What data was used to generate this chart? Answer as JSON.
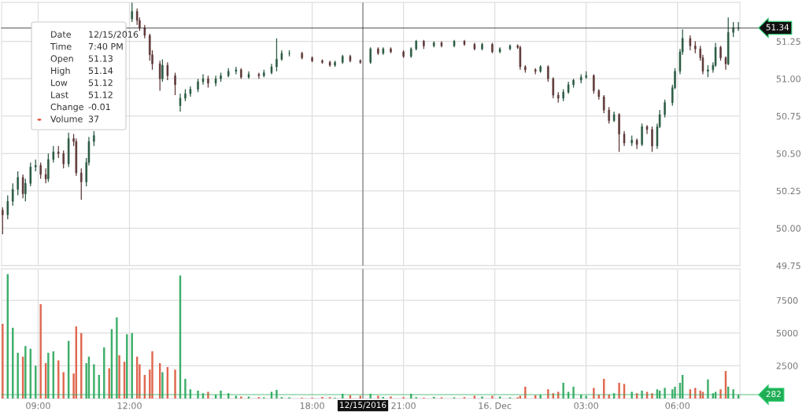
{
  "chart_data": [
    {
      "type": "candlestick",
      "x": [
        "2016-12-15T07:50",
        "2016-12-15T08:00",
        "2016-12-15T08:10",
        "2016-12-15T08:20",
        "2016-12-15T08:30",
        "2016-12-15T08:35",
        "2016-12-15T08:45",
        "2016-12-15T08:55",
        "2016-12-15T09:05",
        "2016-12-15T09:15",
        "2016-12-15T09:20",
        "2016-12-15T09:30",
        "2016-12-15T09:40",
        "2016-12-15T09:50",
        "2016-12-15T10:00",
        "2016-12-15T10:10",
        "2016-12-15T10:15",
        "2016-12-15T10:25",
        "2016-12-15T10:35",
        "2016-12-15T10:40",
        "2016-12-15T10:50",
        "2016-12-15T12:05",
        "2016-12-15T12:15",
        "2016-12-15T12:20",
        "2016-12-15T12:30",
        "2016-12-15T12:40",
        "2016-12-15T12:45",
        "2016-12-15T13:00",
        "2016-12-15T13:05",
        "2016-12-15T13:15",
        "2016-12-15T13:30",
        "2016-12-15T13:40",
        "2016-12-15T13:50",
        "2016-12-15T14:00",
        "2016-12-15T14:15",
        "2016-12-15T14:25",
        "2016-12-15T14:35",
        "2016-12-15T14:50",
        "2016-12-15T15:00",
        "2016-12-15T15:15",
        "2016-12-15T15:30",
        "2016-12-15T15:40",
        "2016-12-15T15:55",
        "2016-12-15T16:15",
        "2016-12-15T16:25",
        "2016-12-15T16:40",
        "2016-12-15T16:50",
        "2016-12-15T17:00",
        "2016-12-15T17:15",
        "2016-12-15T17:40",
        "2016-12-15T18:00",
        "2016-12-15T18:20",
        "2016-12-15T18:35",
        "2016-12-15T18:45",
        "2016-12-15T19:00",
        "2016-12-15T19:15",
        "2016-12-15T19:35",
        "2016-12-15T19:55",
        "2016-12-15T20:10",
        "2016-12-15T20:20",
        "2016-12-15T20:35",
        "2016-12-15T21:00",
        "2016-12-15T21:15",
        "2016-12-15T21:25",
        "2016-12-15T21:40",
        "2016-12-15T22:00",
        "2016-12-15T22:15",
        "2016-12-15T22:40",
        "2016-12-15T23:00",
        "2016-12-15T23:20",
        "2016-12-15T23:35",
        "2016-12-15T23:55",
        "2016-12-16T00:10",
        "2016-12-16T00:30",
        "2016-12-16T00:45",
        "2016-12-16T00:50",
        "2016-12-16T01:00",
        "2016-12-16T01:20",
        "2016-12-16T01:30",
        "2016-12-16T01:45",
        "2016-12-16T01:55",
        "2016-12-16T02:05",
        "2016-12-16T02:15",
        "2016-12-16T02:25",
        "2016-12-16T02:35",
        "2016-12-16T02:50",
        "2016-12-16T03:00",
        "2016-12-16T03:15",
        "2016-12-16T03:25",
        "2016-12-16T03:35",
        "2016-12-16T03:45",
        "2016-12-16T03:55",
        "2016-12-16T04:05",
        "2016-12-16T04:15",
        "2016-12-16T04:30",
        "2016-12-16T04:40",
        "2016-12-16T04:50",
        "2016-12-16T05:00",
        "2016-12-16T05:10",
        "2016-12-16T05:20",
        "2016-12-16T05:25",
        "2016-12-16T05:35",
        "2016-12-16T05:50",
        "2016-12-16T05:55",
        "2016-12-16T06:05",
        "2016-12-16T06:10",
        "2016-12-16T06:25",
        "2016-12-16T06:35",
        "2016-12-16T06:45",
        "2016-12-16T06:50",
        "2016-12-16T07:00",
        "2016-12-16T07:10",
        "2016-12-16T07:15",
        "2016-12-16T07:25",
        "2016-12-16T07:35",
        "2016-12-16T07:40",
        "2016-12-16T07:50",
        "2016-12-16T08:00"
      ],
      "ohlc": [
        [
          50.12,
          50.14,
          49.96,
          50.09
        ],
        [
          50.09,
          50.22,
          50.06,
          50.18
        ],
        [
          50.18,
          50.3,
          50.15,
          50.26
        ],
        [
          50.26,
          50.38,
          50.22,
          50.34
        ],
        [
          50.34,
          50.36,
          50.2,
          50.23
        ],
        [
          50.23,
          50.33,
          50.18,
          50.3
        ],
        [
          50.3,
          50.44,
          50.28,
          50.41
        ],
        [
          50.41,
          50.46,
          50.38,
          50.42
        ],
        [
          50.42,
          50.44,
          50.33,
          50.36
        ],
        [
          50.36,
          50.4,
          50.3,
          50.33
        ],
        [
          50.33,
          50.5,
          50.31,
          50.46
        ],
        [
          50.46,
          50.55,
          50.44,
          50.51
        ],
        [
          50.51,
          50.55,
          50.47,
          50.5
        ],
        [
          50.5,
          50.52,
          50.4,
          50.43
        ],
        [
          50.43,
          50.64,
          50.41,
          50.6
        ],
        [
          50.6,
          50.63,
          50.55,
          50.58
        ],
        [
          50.58,
          50.6,
          50.35,
          50.37
        ],
        [
          50.37,
          50.4,
          50.19,
          50.31
        ],
        [
          50.31,
          50.47,
          50.28,
          50.44
        ],
        [
          50.44,
          50.61,
          50.42,
          50.58
        ],
        [
          50.58,
          50.65,
          50.55,
          50.62
        ],
        [
          51.4,
          51.51,
          51.38,
          51.45
        ],
        [
          51.45,
          51.47,
          51.36,
          51.39
        ],
        [
          51.39,
          51.41,
          51.32,
          51.34
        ],
        [
          51.34,
          51.36,
          51.27,
          51.29
        ],
        [
          51.29,
          51.3,
          51.12,
          51.16
        ],
        [
          51.16,
          51.19,
          51.06,
          51.1
        ],
        [
          51.1,
          51.12,
          50.92,
          51.0
        ],
        [
          51.0,
          51.13,
          50.98,
          51.09
        ],
        [
          51.09,
          51.11,
          50.99,
          51.02
        ],
        [
          51.02,
          51.04,
          50.89,
          50.96
        ],
        [
          50.82,
          50.9,
          50.78,
          50.87
        ],
        [
          50.87,
          50.93,
          50.85,
          50.9
        ],
        [
          50.9,
          50.95,
          50.88,
          50.93
        ],
        [
          50.93,
          51.0,
          50.91,
          50.98
        ],
        [
          50.98,
          51.03,
          50.96,
          51.0
        ],
        [
          51.0,
          51.02,
          50.94,
          50.97
        ],
        [
          50.97,
          51.02,
          50.95,
          51.0
        ],
        [
          51.0,
          51.04,
          50.98,
          51.02
        ],
        [
          51.02,
          51.07,
          51.01,
          51.05
        ],
        [
          51.05,
          51.08,
          51.03,
          51.06
        ],
        [
          51.06,
          51.07,
          51.0,
          51.01
        ],
        [
          51.01,
          51.05,
          51.0,
          51.03
        ],
        [
          51.03,
          51.04,
          51.0,
          51.02
        ],
        [
          51.02,
          51.06,
          51.01,
          51.04
        ],
        [
          51.04,
          51.1,
          51.03,
          51.08
        ],
        [
          51.08,
          51.27,
          51.05,
          51.13
        ],
        [
          51.13,
          51.19,
          51.12,
          51.17
        ],
        [
          51.17,
          51.19,
          51.15,
          51.17
        ],
        [
          51.17,
          51.18,
          51.13,
          51.14
        ],
        [
          51.14,
          51.15,
          51.11,
          51.12
        ],
        [
          51.12,
          51.13,
          51.1,
          51.11
        ],
        [
          51.11,
          51.12,
          51.08,
          51.09
        ],
        [
          51.09,
          51.12,
          51.08,
          51.11
        ],
        [
          51.11,
          51.16,
          51.1,
          51.15
        ],
        [
          51.15,
          51.16,
          51.11,
          51.12
        ],
        [
          51.12,
          51.13,
          51.1,
          51.11
        ],
        [
          51.11,
          51.21,
          51.1,
          51.2
        ],
        [
          51.2,
          51.21,
          51.16,
          51.17
        ],
        [
          51.17,
          51.21,
          51.16,
          51.2
        ],
        [
          51.2,
          51.21,
          51.17,
          51.18
        ],
        [
          51.18,
          51.19,
          51.14,
          51.15
        ],
        [
          51.15,
          51.21,
          51.14,
          51.2
        ],
        [
          51.2,
          51.26,
          51.19,
          51.25
        ],
        [
          51.25,
          51.26,
          51.2,
          51.22
        ],
        [
          51.22,
          51.25,
          51.21,
          51.24
        ],
        [
          51.24,
          51.25,
          51.21,
          51.22
        ],
        [
          51.22,
          51.26,
          51.21,
          51.25
        ],
        [
          51.25,
          51.26,
          51.22,
          51.23
        ],
        [
          51.23,
          51.24,
          51.19,
          51.2
        ],
        [
          51.2,
          51.24,
          51.19,
          51.23
        ],
        [
          51.23,
          51.24,
          51.17,
          51.18
        ],
        [
          51.18,
          51.21,
          51.17,
          51.2
        ],
        [
          51.2,
          51.23,
          51.19,
          51.22
        ],
        [
          51.22,
          51.23,
          51.2,
          51.21
        ],
        [
          51.21,
          51.22,
          51.06,
          51.08
        ],
        [
          51.08,
          51.09,
          51.04,
          51.06
        ],
        [
          51.06,
          51.07,
          51.03,
          51.05
        ],
        [
          51.05,
          51.09,
          51.04,
          51.08
        ],
        [
          51.08,
          51.09,
          50.98,
          51.0
        ],
        [
          51.0,
          51.01,
          50.87,
          50.89
        ],
        [
          50.89,
          50.91,
          50.84,
          50.87
        ],
        [
          50.87,
          50.93,
          50.85,
          50.91
        ],
        [
          50.91,
          50.98,
          50.9,
          50.96
        ],
        [
          50.96,
          51.0,
          50.94,
          50.99
        ],
        [
          50.99,
          51.03,
          50.97,
          51.01
        ],
        [
          51.01,
          51.05,
          51.0,
          51.02
        ],
        [
          51.02,
          51.03,
          50.9,
          50.92
        ],
        [
          50.92,
          50.93,
          50.86,
          50.88
        ],
        [
          50.88,
          50.89,
          50.77,
          50.79
        ],
        [
          50.79,
          50.81,
          50.7,
          50.72
        ],
        [
          50.72,
          50.78,
          50.71,
          50.76
        ],
        [
          50.76,
          50.77,
          50.51,
          50.63
        ],
        [
          50.63,
          50.65,
          50.55,
          50.57
        ],
        [
          50.57,
          50.62,
          50.55,
          50.59
        ],
        [
          50.59,
          50.6,
          50.53,
          50.56
        ],
        [
          50.56,
          50.7,
          50.55,
          50.68
        ],
        [
          50.68,
          50.69,
          50.63,
          50.66
        ],
        [
          50.66,
          50.68,
          50.51,
          50.55
        ],
        [
          50.55,
          50.7,
          50.53,
          50.68
        ],
        [
          50.68,
          50.79,
          50.67,
          50.76
        ],
        [
          50.76,
          50.86,
          50.74,
          50.84
        ],
        [
          50.84,
          50.96,
          50.82,
          50.94
        ],
        [
          50.94,
          51.07,
          50.93,
          51.05
        ],
        [
          51.05,
          51.2,
          51.03,
          51.18
        ],
        [
          51.18,
          51.33,
          51.16,
          51.27
        ],
        [
          51.27,
          51.29,
          51.19,
          51.22
        ],
        [
          51.22,
          51.25,
          51.17,
          51.2
        ],
        [
          51.2,
          51.22,
          51.12,
          51.14
        ],
        [
          51.14,
          51.16,
          51.03,
          51.05
        ],
        [
          51.05,
          51.09,
          51.01,
          51.06
        ],
        [
          51.06,
          51.11,
          51.04,
          51.09
        ],
        [
          51.09,
          51.24,
          51.08,
          51.21
        ],
        [
          51.21,
          51.22,
          51.12,
          51.14
        ],
        [
          51.14,
          51.15,
          51.06,
          51.1
        ],
        [
          51.1,
          51.41,
          51.09,
          51.31
        ],
        [
          51.31,
          51.38,
          51.28,
          51.34
        ],
        [
          51.34,
          51.38,
          51.32,
          51.34
        ]
      ],
      "colors": [
        "#5e3838",
        "#2a5a42",
        "#2a5a42",
        "#2a5a42",
        "#5e3838",
        "#2a5a42",
        "#2a5a42",
        "#2a5a42",
        "#5e3838",
        "#5e3838",
        "#2a5a42",
        "#2a5a42",
        "#5e3838",
        "#5e3838",
        "#2a5a42",
        "#5e3838",
        "#5e3838",
        "#5e3838",
        "#2a5a42",
        "#2a5a42",
        "#2a5a42",
        "#2a5a42",
        "#5e3838",
        "#5e3838",
        "#5e3838",
        "#5e3838",
        "#5e3838",
        "#5e3838",
        "#2a5a42",
        "#5e3838",
        "#5e3838",
        "#2a5a42",
        "#2a5a42",
        "#2a5a42",
        "#2a5a42",
        "#2a5a42",
        "#5e3838",
        "#2a5a42",
        "#2a5a42",
        "#2a5a42",
        "#2a5a42",
        "#5e3838",
        "#2a5a42",
        "#5e3838",
        "#2a5a42",
        "#2a5a42",
        "#2a5a42",
        "#2a5a42",
        "#2a5a42",
        "#5e3838",
        "#5e3838",
        "#5e3838",
        "#5e3838",
        "#2a5a42",
        "#2a5a42",
        "#5e3838",
        "#5e3838",
        "#2a5a42",
        "#5e3838",
        "#2a5a42",
        "#5e3838",
        "#5e3838",
        "#2a5a42",
        "#2a5a42",
        "#5e3838",
        "#2a5a42",
        "#5e3838",
        "#2a5a42",
        "#5e3838",
        "#5e3838",
        "#2a5a42",
        "#5e3838",
        "#2a5a42",
        "#2a5a42",
        "#5e3838",
        "#5e3838",
        "#5e3838",
        "#5e3838",
        "#2a5a42",
        "#5e3838",
        "#5e3838",
        "#5e3838",
        "#2a5a42",
        "#2a5a42",
        "#2a5a42",
        "#2a5a42",
        "#2a5a42",
        "#5e3838",
        "#5e3838",
        "#5e3838",
        "#5e3838",
        "#2a5a42",
        "#5e3838",
        "#5e3838",
        "#2a5a42",
        "#5e3838",
        "#2a5a42",
        "#5e3838",
        "#5e3838",
        "#2a5a42",
        "#2a5a42",
        "#2a5a42",
        "#2a5a42",
        "#2a5a42",
        "#2a5a42",
        "#2a5a42",
        "#5e3838",
        "#5e3838",
        "#5e3838",
        "#5e3838",
        "#2a5a42",
        "#2a5a42",
        "#2a5a42",
        "#5e3838",
        "#5e3838",
        "#2a5a42",
        "#2a5a42",
        "#2a5a42"
      ],
      "xlim": [
        "2016-12-15T07:48",
        "2016-12-16T08:03"
      ],
      "xticks": [
        {
          "value": "2016-12-15T09:00",
          "label": null
        },
        {
          "value": "2016-12-15T12:00",
          "label": null
        },
        {
          "value": "2016-12-15T18:00",
          "label": null
        },
        {
          "value": "2016-12-15T21:00",
          "label": null
        },
        {
          "value": "2016-12-16T00:00",
          "label": null
        },
        {
          "value": "2016-12-16T03:00",
          "label": null
        },
        {
          "value": "2016-12-16T06:00",
          "label": null
        }
      ],
      "ylim": [
        49.75,
        51.51
      ],
      "yticks": [
        {
          "value": 49.75,
          "label": "49.75"
        },
        {
          "value": 50,
          "label": "50.00"
        },
        {
          "value": 50.25,
          "label": "50.25"
        },
        {
          "value": 50.5,
          "label": "50.50"
        },
        {
          "value": 50.75,
          "label": "50.75"
        },
        {
          "value": 51,
          "label": "51.00"
        },
        {
          "value": 51.25,
          "label": "51.25"
        }
      ],
      "tick_labels": "y",
      "grid": true,
      "ref_lines": [
        {
          "axis": "x",
          "value": "2016-12-15T19:40",
          "color": "#777777"
        },
        {
          "axis": "y",
          "value": 51.34,
          "label": "51.34",
          "color": "#111111"
        }
      ],
      "annotations": [
        "Date",
        "12/15/2016",
        "Time",
        "7:40 PM",
        "Open",
        "51.13",
        "High",
        "51.14",
        "Low",
        "51.12",
        "Last",
        "51.12",
        "Change",
        "-0.01",
        "Volume",
        "37"
      ]
    },
    {
      "type": "bar",
      "x": [
        "2016-12-15T07:50",
        "2016-12-15T08:00",
        "2016-12-15T08:10",
        "2016-12-15T08:20",
        "2016-12-15T08:30",
        "2016-12-15T08:35",
        "2016-12-15T08:45",
        "2016-12-15T08:55",
        "2016-12-15T09:05",
        "2016-12-15T09:15",
        "2016-12-15T09:20",
        "2016-12-15T09:30",
        "2016-12-15T09:40",
        "2016-12-15T09:50",
        "2016-12-15T10:00",
        "2016-12-15T10:10",
        "2016-12-15T10:15",
        "2016-12-15T10:25",
        "2016-12-15T10:35",
        "2016-12-15T10:40",
        "2016-12-15T10:50",
        "2016-12-15T11:00",
        "2016-12-15T11:10",
        "2016-12-15T11:20",
        "2016-12-15T11:25",
        "2016-12-15T11:35",
        "2016-12-15T11:40",
        "2016-12-15T11:50",
        "2016-12-15T11:55",
        "2016-12-15T12:05",
        "2016-12-15T12:15",
        "2016-12-15T12:20",
        "2016-12-15T12:30",
        "2016-12-15T12:40",
        "2016-12-15T12:45",
        "2016-12-15T13:00",
        "2016-12-15T13:05",
        "2016-12-15T13:15",
        "2016-12-15T13:30",
        "2016-12-15T13:40",
        "2016-12-15T13:50",
        "2016-12-15T14:00",
        "2016-12-15T14:15",
        "2016-12-15T14:25",
        "2016-12-15T14:35",
        "2016-12-15T14:50",
        "2016-12-15T15:00",
        "2016-12-15T15:15",
        "2016-12-15T15:30",
        "2016-12-15T15:40",
        "2016-12-15T15:55",
        "2016-12-15T16:15",
        "2016-12-15T16:25",
        "2016-12-15T16:40",
        "2016-12-15T16:50",
        "2016-12-15T17:00",
        "2016-12-15T17:15",
        "2016-12-15T17:40",
        "2016-12-15T18:00",
        "2016-12-15T18:20",
        "2016-12-15T18:35",
        "2016-12-15T18:45",
        "2016-12-15T19:00",
        "2016-12-15T19:15",
        "2016-12-15T19:35",
        "2016-12-15T19:55",
        "2016-12-15T20:10",
        "2016-12-15T20:20",
        "2016-12-15T20:35",
        "2016-12-15T21:00",
        "2016-12-15T21:15",
        "2016-12-15T21:25",
        "2016-12-15T21:40",
        "2016-12-15T22:00",
        "2016-12-15T22:15",
        "2016-12-15T22:40",
        "2016-12-15T23:00",
        "2016-12-15T23:20",
        "2016-12-15T23:35",
        "2016-12-15T23:55",
        "2016-12-16T00:10",
        "2016-12-16T00:30",
        "2016-12-16T00:45",
        "2016-12-16T00:50",
        "2016-12-16T01:00",
        "2016-12-16T01:20",
        "2016-12-16T01:30",
        "2016-12-16T01:45",
        "2016-12-16T01:55",
        "2016-12-16T02:05",
        "2016-12-16T02:15",
        "2016-12-16T02:25",
        "2016-12-16T02:35",
        "2016-12-16T02:50",
        "2016-12-16T03:00",
        "2016-12-16T03:15",
        "2016-12-16T03:25",
        "2016-12-16T03:35",
        "2016-12-16T03:45",
        "2016-12-16T03:55",
        "2016-12-16T04:05",
        "2016-12-16T04:15",
        "2016-12-16T04:30",
        "2016-12-16T04:40",
        "2016-12-16T04:50",
        "2016-12-16T05:00",
        "2016-12-16T05:10",
        "2016-12-16T05:20",
        "2016-12-16T05:25",
        "2016-12-16T05:35",
        "2016-12-16T05:50",
        "2016-12-16T05:55",
        "2016-12-16T06:05",
        "2016-12-16T06:10",
        "2016-12-16T06:25",
        "2016-12-16T06:35",
        "2016-12-16T06:45",
        "2016-12-16T06:50",
        "2016-12-16T07:00",
        "2016-12-16T07:10",
        "2016-12-16T07:15",
        "2016-12-16T07:25",
        "2016-12-16T07:35",
        "2016-12-16T07:40",
        "2016-12-16T07:50",
        "2016-12-16T08:00"
      ],
      "values": [
        5700,
        9500,
        5400,
        3500,
        3200,
        4000,
        3800,
        2500,
        7200,
        2700,
        3500,
        3600,
        2900,
        2000,
        4400,
        1900,
        5500,
        5000,
        2700,
        3200,
        2600,
        1800,
        3900,
        2300,
        5300,
        6200,
        3300,
        2800,
        4900,
        5000,
        3200,
        2600,
        1800,
        2200,
        3600,
        2700,
        2000,
        2400,
        2200,
        9400,
        1500,
        700,
        600,
        400,
        500,
        300,
        600,
        400,
        200,
        150,
        150,
        100,
        80,
        500,
        650,
        100,
        80,
        60,
        50,
        120,
        100,
        60,
        350,
        250,
        200,
        350,
        200,
        120,
        150,
        100,
        350,
        100,
        60,
        120,
        80,
        80,
        100,
        200,
        150,
        200,
        150,
        80,
        80,
        200,
        900,
        250,
        300,
        700,
        400,
        500,
        1200,
        500,
        900,
        300,
        200,
        800,
        300,
        1500,
        300,
        400,
        1200,
        1100,
        500,
        400,
        600,
        500,
        400,
        700,
        600,
        800,
        700,
        900,
        1200,
        1800,
        700,
        800,
        600,
        500,
        1450,
        400,
        500,
        700,
        2100,
        900,
        700,
        282
      ],
      "colors": [
        "#e0664f",
        "#3dae6a",
        "#3dae6a",
        "#3dae6a",
        "#e0664f",
        "#3dae6a",
        "#3dae6a",
        "#3dae6a",
        "#e0664f",
        "#e0664f",
        "#3dae6a",
        "#3dae6a",
        "#e0664f",
        "#e0664f",
        "#3dae6a",
        "#e0664f",
        "#e0664f",
        "#e0664f",
        "#3dae6a",
        "#3dae6a",
        "#3dae6a",
        "#3dae6a",
        "#3dae6a",
        "#e0664f",
        "#3dae6a",
        "#3dae6a",
        "#e0664f",
        "#e0664f",
        "#3dae6a",
        "#3dae6a",
        "#e0664f",
        "#e0664f",
        "#e0664f",
        "#e0664f",
        "#e0664f",
        "#e0664f",
        "#3dae6a",
        "#e0664f",
        "#e0664f",
        "#3dae6a",
        "#3dae6a",
        "#3dae6a",
        "#3dae6a",
        "#3dae6a",
        "#e0664f",
        "#3dae6a",
        "#3dae6a",
        "#3dae6a",
        "#3dae6a",
        "#e0664f",
        "#3dae6a",
        "#e0664f",
        "#3dae6a",
        "#3dae6a",
        "#3dae6a",
        "#3dae6a",
        "#3dae6a",
        "#e0664f",
        "#e0664f",
        "#e0664f",
        "#e0664f",
        "#3dae6a",
        "#3dae6a",
        "#e0664f",
        "#e0664f",
        "#3dae6a",
        "#e0664f",
        "#3dae6a",
        "#e0664f",
        "#e0664f",
        "#3dae6a",
        "#3dae6a",
        "#e0664f",
        "#3dae6a",
        "#e0664f",
        "#3dae6a",
        "#e0664f",
        "#e0664f",
        "#3dae6a",
        "#e0664f",
        "#3dae6a",
        "#3dae6a",
        "#e0664f",
        "#e0664f",
        "#e0664f",
        "#e0664f",
        "#3dae6a",
        "#e0664f",
        "#e0664f",
        "#e0664f",
        "#3dae6a",
        "#3dae6a",
        "#3dae6a",
        "#3dae6a",
        "#3dae6a",
        "#e0664f",
        "#e0664f",
        "#e0664f",
        "#e0664f",
        "#3dae6a",
        "#e0664f",
        "#e0664f",
        "#3dae6a",
        "#e0664f",
        "#3dae6a",
        "#e0664f",
        "#e0664f",
        "#3dae6a",
        "#3dae6a",
        "#3dae6a",
        "#3dae6a",
        "#3dae6a",
        "#3dae6a",
        "#3dae6a",
        "#e0664f",
        "#e0664f",
        "#e0664f",
        "#e0664f",
        "#3dae6a",
        "#3dae6a",
        "#3dae6a",
        "#e0664f",
        "#e0664f",
        "#3dae6a",
        "#3dae6a",
        "#3dae6a"
      ],
      "xlim": [
        "2016-12-15T07:48",
        "2016-12-16T08:03"
      ],
      "xticks": [
        {
          "value": "2016-12-15T09:00",
          "label": "09:00"
        },
        {
          "value": "2016-12-15T12:00",
          "label": "12:00"
        },
        {
          "value": "2016-12-15T18:00",
          "label": "18:00"
        },
        {
          "value": "2016-12-15T21:00",
          "label": "21:00"
        },
        {
          "value": "2016-12-16T00:00",
          "label": "16. Dec"
        },
        {
          "value": "2016-12-16T03:00",
          "label": "03:00"
        },
        {
          "value": "2016-12-16T06:00",
          "label": "06:00"
        }
      ],
      "ylim": [
        0,
        9900
      ],
      "yticks": [
        2500,
        5000,
        7500
      ],
      "grid": true,
      "ref_lines": [
        {
          "axis": "x",
          "value": "2016-12-15T19:40",
          "label": "12/15/2016",
          "color": "#777777"
        },
        {
          "axis": "y",
          "value": 282,
          "label": "282",
          "color": "#1fae55"
        }
      ]
    }
  ]
}
